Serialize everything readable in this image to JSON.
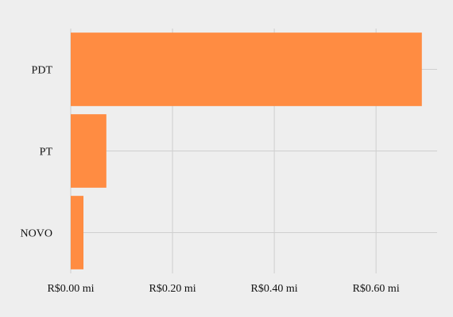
{
  "chart_data": {
    "type": "bar",
    "orientation": "horizontal",
    "categories": [
      "PDT",
      "PT",
      "NOVO"
    ],
    "values": [
      0.69,
      0.07,
      0.025
    ],
    "xlim": [
      0,
      0.72
    ],
    "x_ticks": [
      0,
      0.2,
      0.4,
      0.6
    ],
    "x_tick_labels": [
      "R$0.00 mi",
      "R$0.20 mi",
      "R$0.40 mi",
      "R$0.60 mi"
    ],
    "title": "",
    "xlabel": "",
    "ylabel": "",
    "grid": true,
    "legend": "none",
    "bar_color": "#ff8c42",
    "background_color": "#eeeeee",
    "grid_color": "#cfcfcf"
  }
}
